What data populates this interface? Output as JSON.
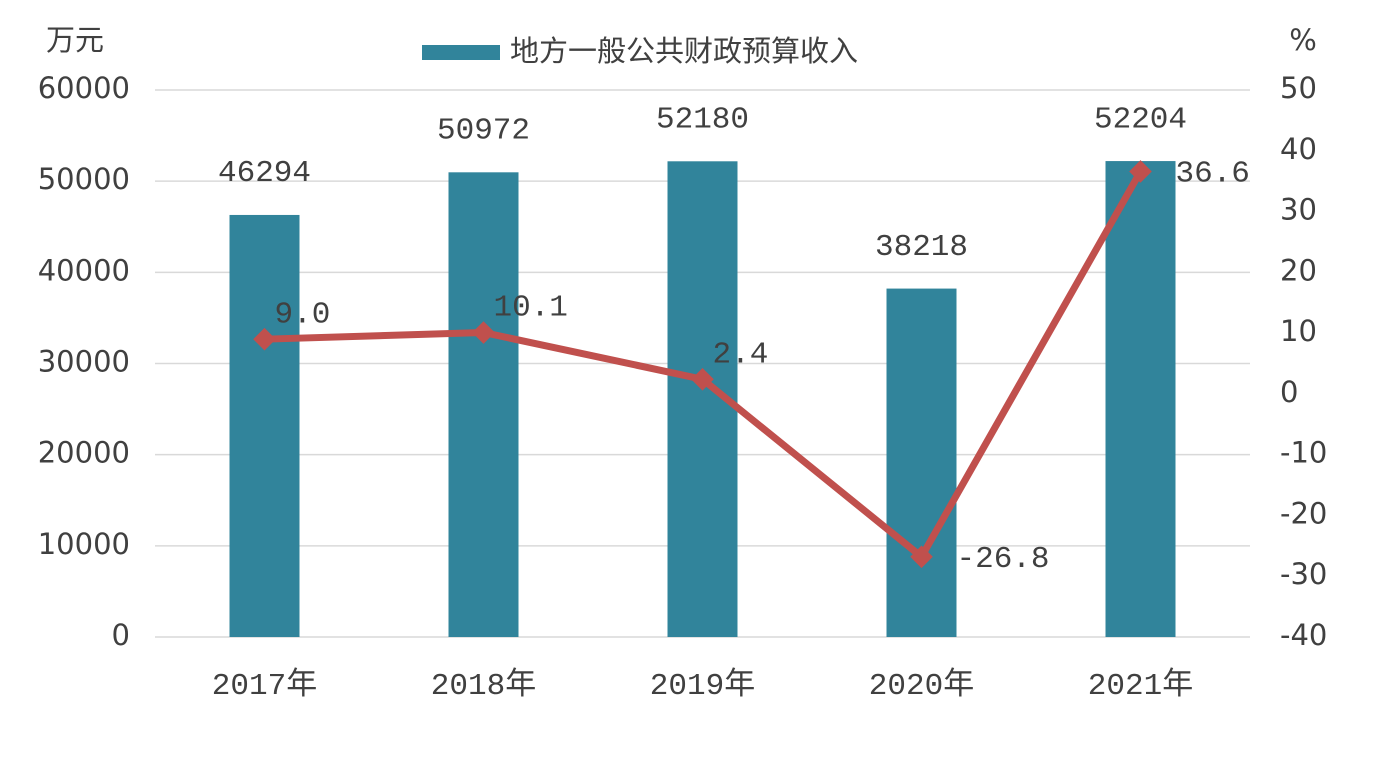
{
  "chart_data": {
    "type": "bar_line",
    "y_label": "万元",
    "y2_label": "%",
    "categories": [
      "2017年",
      "2018年",
      "2019年",
      "2020年",
      "2021年"
    ],
    "series": [
      {
        "name": "地方一般公共财政预算收入",
        "type": "bar",
        "color": "#31849b",
        "values": [
          46294,
          50972,
          52180,
          38218,
          52204
        ]
      },
      {
        "type": "line",
        "axis": "y2",
        "color": "#c0504d",
        "values": [
          9.0,
          10.1,
          2.4,
          -26.8,
          36.6
        ],
        "value_labels": [
          "9.0",
          "10.1",
          "2.4",
          "-26.8",
          "36.6"
        ]
      }
    ],
    "ylim": [
      0,
      60000
    ],
    "yticks": [
      0,
      10000,
      20000,
      30000,
      40000,
      50000,
      60000
    ],
    "y2lim": [
      -40,
      50
    ],
    "y2ticks": [
      -40,
      -30,
      -20,
      -10,
      0,
      10,
      20,
      30,
      40,
      50
    ],
    "grid": true
  }
}
